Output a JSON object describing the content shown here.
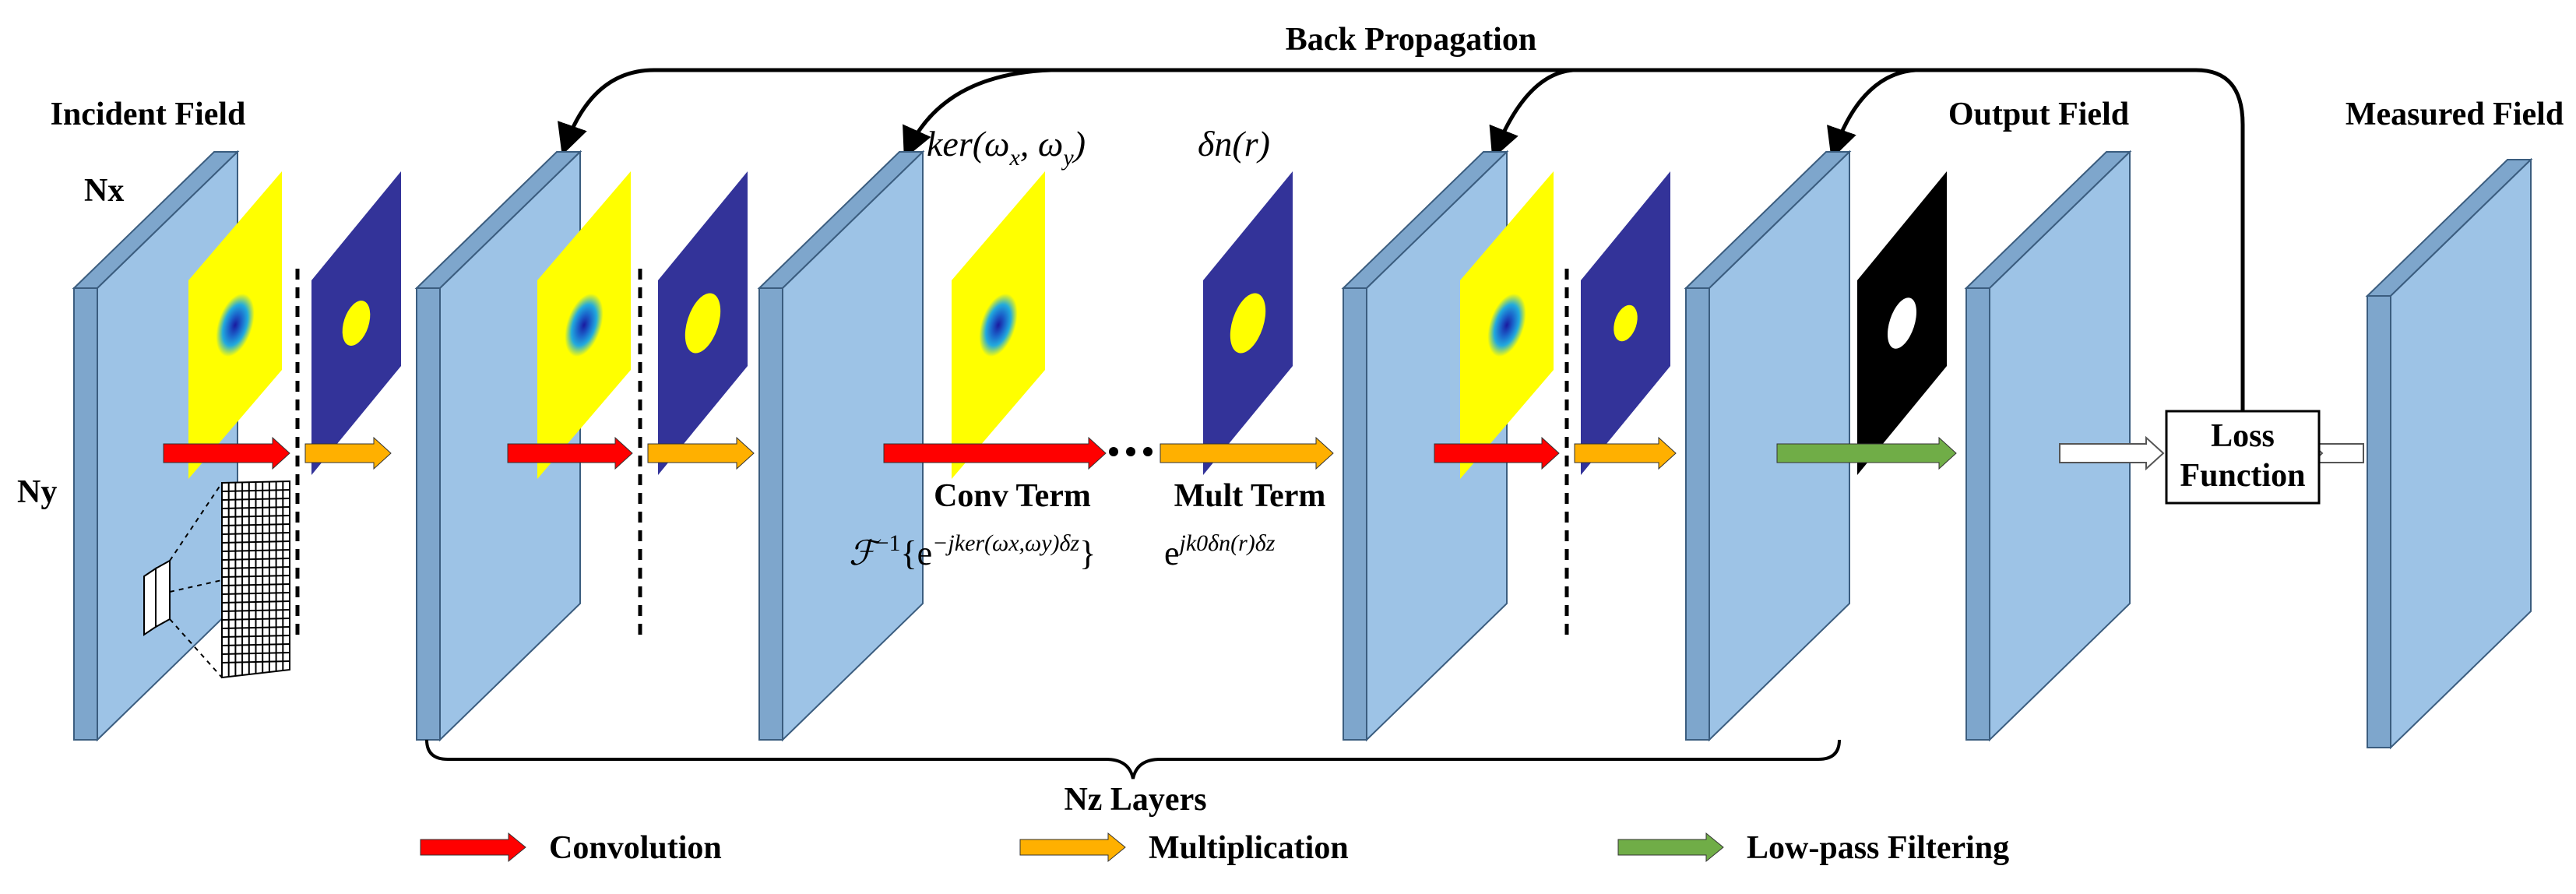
{
  "labels": {
    "back_propagation": "Back Propagation",
    "incident_field": "Incident Field",
    "nx": "Nx",
    "ny": "Ny",
    "output_field": "Output Field",
    "measured_field": "Measured Field",
    "kernel": "ker(ω",
    "kernel_sub_x": "x",
    "kernel_mid": ", ω",
    "kernel_sub_y": "y",
    "kernel_end": ")",
    "delta_n": "δn(r)",
    "conv_term": "Conv Term",
    "mult_term": "Mult Term",
    "conv_formula_main": "ℱ",
    "conv_formula_sup1": "−1",
    "conv_formula_body": "{e",
    "conv_formula_exp": "−jker(ωx,ωy)δz",
    "conv_formula_close": "}",
    "mult_formula_body": "e",
    "mult_formula_exp": "jk0δn(r)δz",
    "loss_line1": "Loss",
    "loss_line2": "Function",
    "nz_layers": "Nz Layers"
  },
  "legend": [
    {
      "label": "Convolution",
      "color": "#ff0000"
    },
    {
      "label": "Multiplication",
      "color": "#ffb000"
    },
    {
      "label": "Low-pass Filtering",
      "color": "#70ad47"
    }
  ],
  "colors": {
    "plate_front": "#9dc3e6",
    "plate_side": "#7ea6cc",
    "kernel_bg": "#ffff00",
    "mask_bg": "#333399",
    "filter_bg": "#000000"
  }
}
